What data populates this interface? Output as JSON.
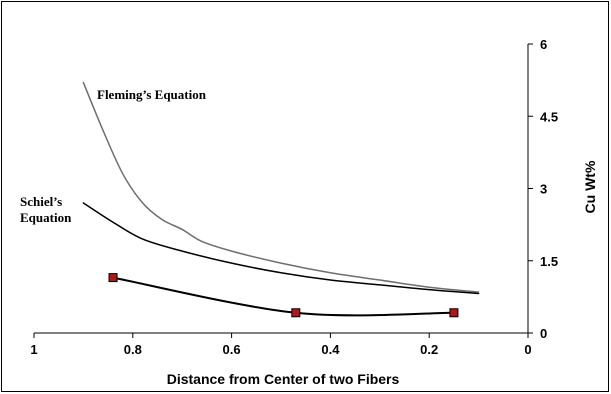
{
  "chart_data": {
    "type": "line",
    "xlabel": "Distance from Center of two Fibers",
    "ylabel": "Cu Wt%",
    "xlim": [
      1,
      0
    ],
    "ylim": [
      0,
      6
    ],
    "x_reversed": true,
    "y_axis_side": "right",
    "grid": false,
    "legend": "none",
    "x_ticks": [
      1,
      0.8,
      0.6,
      0.4,
      0.2,
      0
    ],
    "x_tick_labels": [
      "1",
      "0.8",
      "0.6",
      "0.4",
      "0.2",
      "0"
    ],
    "y_ticks": [
      0,
      1.5,
      3,
      4.5,
      6
    ],
    "y_tick_labels": [
      "0",
      "1.5",
      "3",
      "4.5",
      "6"
    ],
    "annotations": [
      {
        "text": "Fleming’s Equation",
        "series": "fleming"
      },
      {
        "text": "Schiel’s",
        "series": "schiel"
      },
      {
        "text": "Equation",
        "series": "schiel"
      }
    ],
    "series": [
      {
        "id": "fleming",
        "color": "#6e6e6e",
        "marker": "none",
        "x": [
          0.9,
          0.86,
          0.82,
          0.78,
          0.74,
          0.7,
          0.66,
          0.6,
          0.5,
          0.4,
          0.3,
          0.2,
          0.1
        ],
        "y": [
          5.2,
          4.2,
          3.3,
          2.7,
          2.35,
          2.15,
          1.9,
          1.7,
          1.45,
          1.25,
          1.1,
          0.95,
          0.85
        ]
      },
      {
        "id": "schiel",
        "color": "#000000",
        "marker": "none",
        "x": [
          0.9,
          0.84,
          0.78,
          0.7,
          0.6,
          0.5,
          0.4,
          0.3,
          0.2,
          0.1
        ],
        "y": [
          2.7,
          2.3,
          1.95,
          1.7,
          1.45,
          1.25,
          1.1,
          1.0,
          0.9,
          0.82
        ]
      },
      {
        "id": "measured",
        "color": "#000000",
        "marker": "square",
        "marker_fill": "#b01818",
        "smooth": true,
        "x": [
          0.84,
          0.47,
          0.15
        ],
        "y": [
          1.15,
          0.42,
          0.42
        ]
      }
    ]
  }
}
